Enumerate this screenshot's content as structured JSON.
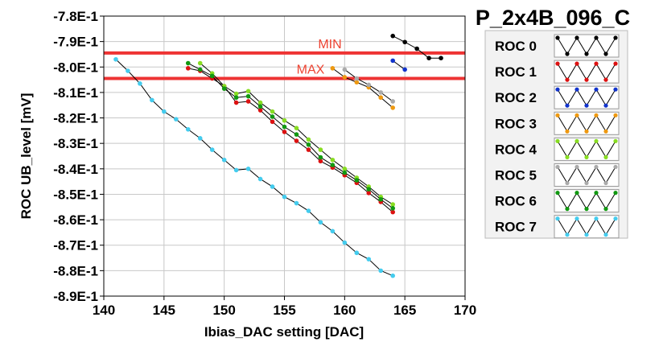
{
  "chart_data": {
    "type": "line",
    "title": "P_2x4B_096_C",
    "xlabel": "Ibias_DAC setting [DAC]",
    "ylabel": "ROC UB_level [mV]",
    "xlim": [
      140,
      170
    ],
    "ylim": [
      -0.89,
      -0.78
    ],
    "x_ticks": [
      "140",
      "145",
      "150",
      "155",
      "160",
      "165",
      "170"
    ],
    "y_ticks": [
      "-7.8E-1",
      "-7.9E-1",
      "-8.0E-1",
      "-8.1E-1",
      "-8.2E-1",
      "-8.3E-1",
      "-8.4E-1",
      "-8.5E-1",
      "-8.6E-1",
      "-8.7E-1",
      "-8.8E-1",
      "-8.9E-1"
    ],
    "grid": true,
    "legend_position": "right",
    "limits": [
      {
        "label": "MIN",
        "value": -0.7945,
        "color": "#ee3333"
      },
      {
        "label": "MAX",
        "value": -0.8045,
        "color": "#ee3333"
      }
    ],
    "series": [
      {
        "name": "ROC 0",
        "color": "#000000",
        "points": [
          [
            164,
            -0.7878
          ],
          [
            165,
            -0.7902
          ],
          [
            166,
            -0.7928
          ],
          [
            167,
            -0.7965
          ],
          [
            168,
            -0.7965
          ]
        ]
      },
      {
        "name": "ROC 1",
        "color": "#dd1111",
        "points": [
          [
            147,
            -0.8005
          ],
          [
            148,
            -0.8015
          ],
          [
            149,
            -0.8045
          ],
          [
            150,
            -0.8075
          ],
          [
            151,
            -0.814
          ],
          [
            152,
            -0.8135
          ],
          [
            153,
            -0.817
          ],
          [
            154,
            -0.8215
          ],
          [
            155,
            -0.8255
          ],
          [
            156,
            -0.829
          ],
          [
            157,
            -0.8325
          ],
          [
            158,
            -0.837
          ],
          [
            159,
            -0.8395
          ],
          [
            160,
            -0.8425
          ],
          [
            161,
            -0.8455
          ],
          [
            162,
            -0.8495
          ],
          [
            163,
            -0.853
          ],
          [
            164,
            -0.857
          ]
        ]
      },
      {
        "name": "ROC 2",
        "color": "#1133cc",
        "points": [
          [
            164,
            -0.7975
          ],
          [
            165,
            -0.801
          ]
        ]
      },
      {
        "name": "ROC 3",
        "color": "#ee9911",
        "points": [
          [
            159,
            -0.8005
          ],
          [
            160,
            -0.804
          ],
          [
            161,
            -0.806
          ],
          [
            162,
            -0.808
          ],
          [
            163,
            -0.812
          ],
          [
            164,
            -0.816
          ]
        ]
      },
      {
        "name": "ROC 4",
        "color": "#88dd22",
        "points": [
          [
            148,
            -0.7985
          ],
          [
            149,
            -0.8025
          ],
          [
            150,
            -0.8075
          ],
          [
            151,
            -0.8105
          ],
          [
            152,
            -0.8095
          ],
          [
            153,
            -0.814
          ],
          [
            154,
            -0.8175
          ],
          [
            155,
            -0.821
          ],
          [
            156,
            -0.824
          ],
          [
            157,
            -0.8285
          ],
          [
            158,
            -0.8325
          ],
          [
            159,
            -0.8365
          ],
          [
            160,
            -0.84
          ],
          [
            161,
            -0.8435
          ],
          [
            162,
            -0.847
          ],
          [
            163,
            -0.851
          ],
          [
            164,
            -0.854
          ]
        ]
      },
      {
        "name": "ROC 5",
        "color": "#aaaaaa",
        "points": [
          [
            160,
            -0.801
          ],
          [
            161,
            -0.8045
          ],
          [
            162,
            -0.807
          ],
          [
            163,
            -0.81
          ],
          [
            164,
            -0.8135
          ]
        ]
      },
      {
        "name": "ROC 6",
        "color": "#119911",
        "points": [
          [
            147,
            -0.7985
          ],
          [
            148,
            -0.801
          ],
          [
            149,
            -0.8035
          ],
          [
            150,
            -0.8085
          ],
          [
            151,
            -0.812
          ],
          [
            152,
            -0.8115
          ],
          [
            153,
            -0.8155
          ],
          [
            154,
            -0.8195
          ],
          [
            155,
            -0.8235
          ],
          [
            156,
            -0.8265
          ],
          [
            157,
            -0.8305
          ],
          [
            158,
            -0.8355
          ],
          [
            159,
            -0.8385
          ],
          [
            160,
            -0.8415
          ],
          [
            161,
            -0.8445
          ],
          [
            162,
            -0.848
          ],
          [
            163,
            -0.852
          ],
          [
            164,
            -0.8555
          ]
        ]
      },
      {
        "name": "ROC 7",
        "color": "#44ccee",
        "points": [
          [
            141,
            -0.797
          ],
          [
            142,
            -0.8015
          ],
          [
            143,
            -0.8065
          ],
          [
            144,
            -0.813
          ],
          [
            145,
            -0.8175
          ],
          [
            146,
            -0.8205
          ],
          [
            147,
            -0.8245
          ],
          [
            148,
            -0.828
          ],
          [
            149,
            -0.8325
          ],
          [
            150,
            -0.8365
          ],
          [
            151,
            -0.8405
          ],
          [
            152,
            -0.84
          ],
          [
            153,
            -0.844
          ],
          [
            154,
            -0.847
          ],
          [
            155,
            -0.851
          ],
          [
            156,
            -0.8535
          ],
          [
            157,
            -0.8565
          ],
          [
            158,
            -0.861
          ],
          [
            159,
            -0.8645
          ],
          [
            160,
            -0.869
          ],
          [
            161,
            -0.873
          ],
          [
            162,
            -0.8755
          ],
          [
            163,
            -0.88
          ],
          [
            164,
            -0.882
          ]
        ]
      }
    ]
  }
}
